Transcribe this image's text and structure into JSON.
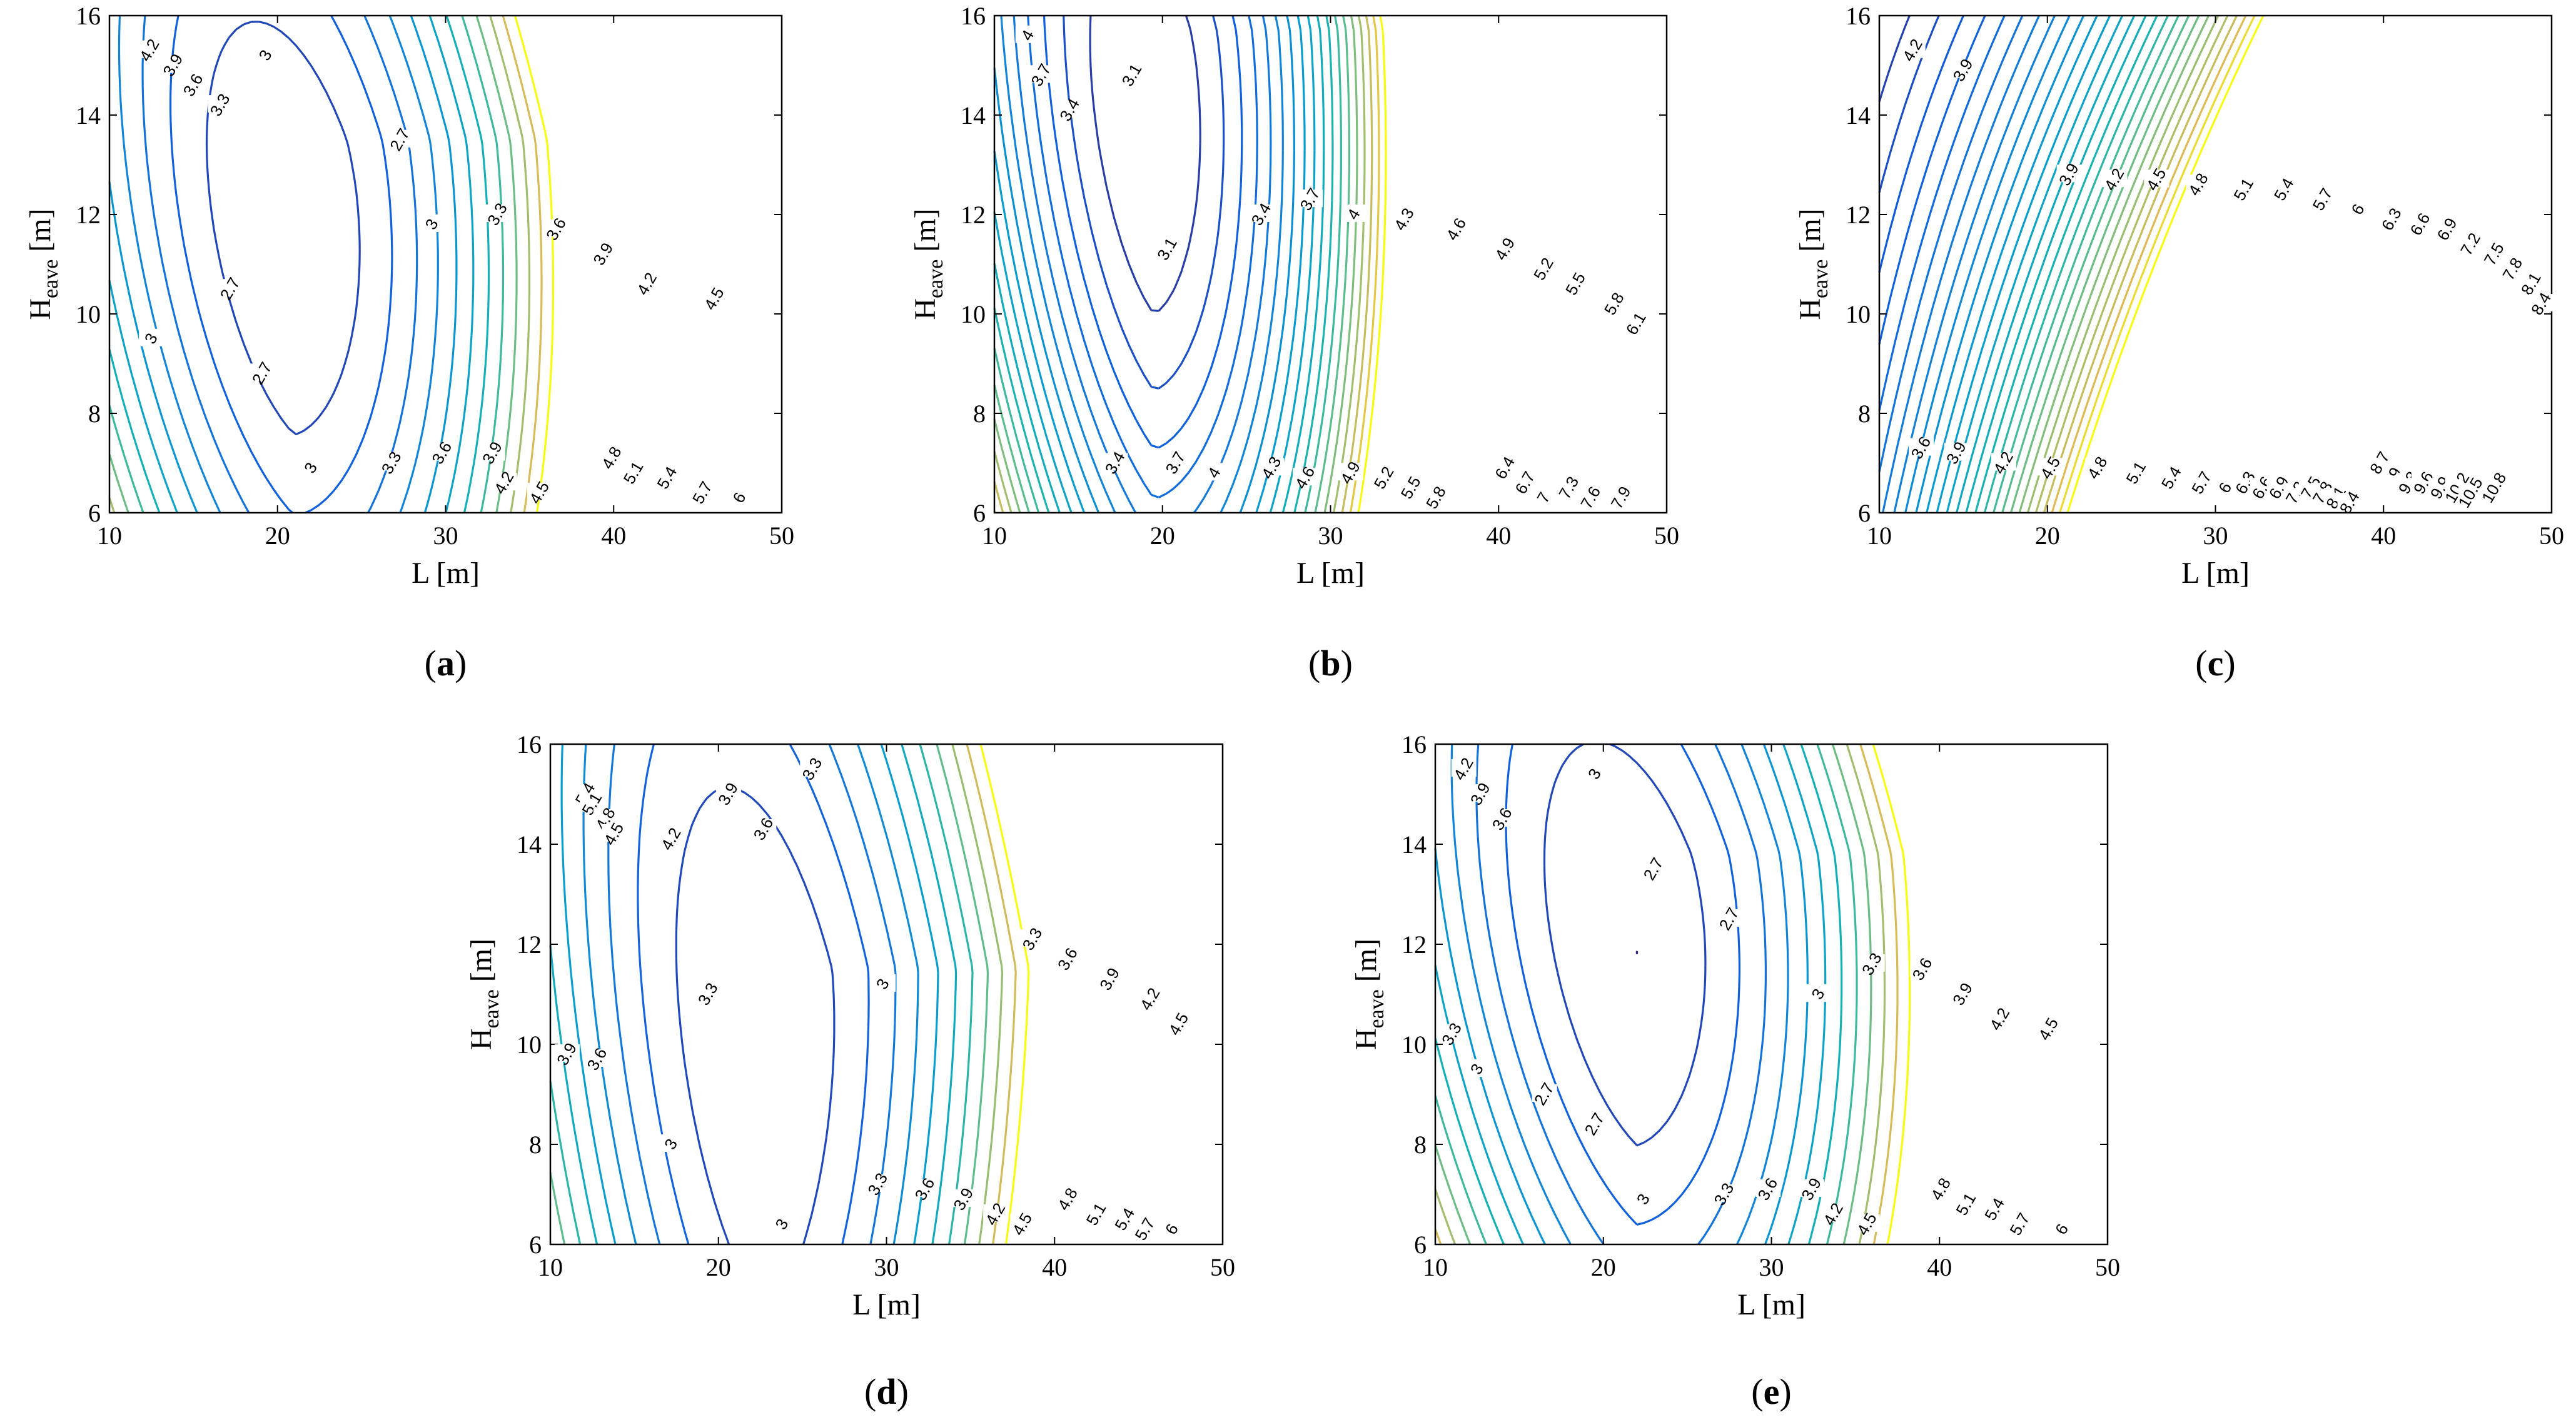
{
  "chart_data": [
    {
      "panel": "(a)",
      "type": "contour",
      "xlabel": "L [m]",
      "ylabel": "H",
      "ylabel_sub": "eave",
      "xlim": [
        10,
        50
      ],
      "ylim": [
        6,
        16
      ],
      "xticks": [
        10,
        20,
        30,
        40,
        50
      ],
      "yticks": [
        6,
        8,
        10,
        12,
        14,
        16
      ],
      "min_level": 2.7,
      "max_level": 6.3,
      "level_step": 0.3,
      "min_center": [
        21,
        11.5
      ],
      "slope": 0.1,
      "ellipse": [
        5.2,
        3.5,
        0.0
      ],
      "y_curvature": 0.06,
      "labels": [
        {
          "level": "4.2",
          "x": 12.4,
          "y": 15.3
        },
        {
          "level": "3.9",
          "x": 13.8,
          "y": 15.0
        },
        {
          "level": "3.6",
          "x": 15.0,
          "y": 14.6
        },
        {
          "level": "3.3",
          "x": 16.6,
          "y": 14.2
        },
        {
          "level": "3",
          "x": 19.3,
          "y": 15.2
        },
        {
          "level": "2.7",
          "x": 27.3,
          "y": 13.5
        },
        {
          "level": "2.7",
          "x": 17.2,
          "y": 10.5
        },
        {
          "level": "2.7",
          "x": 19.1,
          "y": 8.8
        },
        {
          "level": "3",
          "x": 12.5,
          "y": 9.5
        },
        {
          "level": "3",
          "x": 29.2,
          "y": 11.8
        },
        {
          "level": "3.3",
          "x": 33.1,
          "y": 12.0
        },
        {
          "level": "3.6",
          "x": 36.6,
          "y": 11.7
        },
        {
          "level": "3.9",
          "x": 39.4,
          "y": 11.2
        },
        {
          "level": "4.2",
          "x": 42.0,
          "y": 10.6
        },
        {
          "level": "4.5",
          "x": 46.0,
          "y": 10.3
        },
        {
          "level": "3",
          "x": 22.0,
          "y": 6.9
        },
        {
          "level": "3.3",
          "x": 26.8,
          "y": 7.0
        },
        {
          "level": "3.6",
          "x": 29.8,
          "y": 7.2
        },
        {
          "level": "3.9",
          "x": 32.8,
          "y": 7.2
        },
        {
          "level": "4.2",
          "x": 33.5,
          "y": 6.6
        },
        {
          "level": "4.5",
          "x": 35.6,
          "y": 6.4
        },
        {
          "level": "4.8",
          "x": 39.9,
          "y": 7.1
        },
        {
          "level": "5.1",
          "x": 41.2,
          "y": 6.8
        },
        {
          "level": "5.4",
          "x": 43.2,
          "y": 6.7
        },
        {
          "level": "5.7",
          "x": 45.3,
          "y": 6.4
        },
        {
          "level": "6",
          "x": 47.5,
          "y": 6.3
        }
      ]
    },
    {
      "panel": "(b)",
      "type": "contour",
      "xlabel": "L [m]",
      "ylabel": "H",
      "ylabel_sub": "eave",
      "xlim": [
        10,
        50
      ],
      "ylim": [
        6,
        16
      ],
      "xticks": [
        10,
        20,
        30,
        40,
        50
      ],
      "yticks": [
        6,
        8,
        10,
        12,
        14,
        16
      ],
      "min_level": 3.1,
      "max_level": 8.5,
      "level_step": 0.3,
      "min_center": [
        19.5,
        13.7
      ],
      "slope": 0.12,
      "ellipse": [
        3.8,
        3.3,
        0.0
      ],
      "y_curvature": 0.08,
      "labels": [
        {
          "level": "4",
          "x": 12.0,
          "y": 15.6
        },
        {
          "level": "3.7",
          "x": 12.8,
          "y": 14.8
        },
        {
          "level": "3.4",
          "x": 14.5,
          "y": 14.1
        },
        {
          "level": "3.1",
          "x": 18.2,
          "y": 14.8
        },
        {
          "level": "3.1",
          "x": 20.3,
          "y": 11.3
        },
        {
          "level": "3.4",
          "x": 25.9,
          "y": 12.0
        },
        {
          "level": "3.7",
          "x": 28.8,
          "y": 12.3
        },
        {
          "level": "4",
          "x": 31.4,
          "y": 12.0
        },
        {
          "level": "4.3",
          "x": 34.4,
          "y": 11.9
        },
        {
          "level": "4.6",
          "x": 37.5,
          "y": 11.7
        },
        {
          "level": "4.9",
          "x": 40.4,
          "y": 11.3
        },
        {
          "level": "5.2",
          "x": 42.7,
          "y": 10.9
        },
        {
          "level": "5.5",
          "x": 44.6,
          "y": 10.6
        },
        {
          "level": "5.8",
          "x": 46.9,
          "y": 10.2
        },
        {
          "level": "6.1",
          "x": 48.2,
          "y": 9.8
        },
        {
          "level": "3.4",
          "x": 17.2,
          "y": 7.0
        },
        {
          "level": "3.7",
          "x": 20.8,
          "y": 7.0
        },
        {
          "level": "4",
          "x": 23.1,
          "y": 6.8
        },
        {
          "level": "4.3",
          "x": 26.5,
          "y": 6.9
        },
        {
          "level": "4.6",
          "x": 28.5,
          "y": 6.7
        },
        {
          "level": "4.9",
          "x": 31.2,
          "y": 6.8
        },
        {
          "level": "5.2",
          "x": 33.2,
          "y": 6.7
        },
        {
          "level": "5.5",
          "x": 34.8,
          "y": 6.5
        },
        {
          "level": "5.8",
          "x": 36.3,
          "y": 6.3
        },
        {
          "level": "6.4",
          "x": 40.4,
          "y": 6.9
        },
        {
          "level": "6.7",
          "x": 41.6,
          "y": 6.6
        },
        {
          "level": "7",
          "x": 42.7,
          "y": 6.3
        },
        {
          "level": "7.3",
          "x": 44.2,
          "y": 6.5
        },
        {
          "level": "7.6",
          "x": 45.5,
          "y": 6.3
        },
        {
          "level": "7.9",
          "x": 47.3,
          "y": 6.3
        }
      ]
    },
    {
      "panel": "(c)",
      "type": "contour",
      "xlabel": "L [m]",
      "ylabel": "H",
      "ylabel_sub": "eave",
      "xlim": [
        10,
        50
      ],
      "ylim": [
        6,
        16
      ],
      "xticks": [
        10,
        20,
        30,
        40,
        50
      ],
      "yticks": [
        6,
        8,
        10,
        12,
        14,
        16
      ],
      "min_level": 3.6,
      "max_level": 12.0,
      "level_step": 0.3,
      "min_center": [
        5,
        14
      ],
      "slope": 0.16,
      "ellipse": [
        6,
        6,
        0.0
      ],
      "y_curvature": 0.12,
      "labels": [
        {
          "level": "4.2",
          "x": 12.0,
          "y": 15.3
        },
        {
          "level": "3.9",
          "x": 15.0,
          "y": 14.9
        },
        {
          "level": "3.9",
          "x": 21.3,
          "y": 12.8
        },
        {
          "level": "4.2",
          "x": 24.0,
          "y": 12.7
        },
        {
          "level": "4.5",
          "x": 26.5,
          "y": 12.7
        },
        {
          "level": "4.8",
          "x": 29.0,
          "y": 12.6
        },
        {
          "level": "5.1",
          "x": 31.7,
          "y": 12.5
        },
        {
          "level": "5.4",
          "x": 34.1,
          "y": 12.5
        },
        {
          "level": "5.7",
          "x": 36.4,
          "y": 12.3
        },
        {
          "level": "6",
          "x": 38.5,
          "y": 12.1
        },
        {
          "level": "6.3",
          "x": 40.5,
          "y": 11.9
        },
        {
          "level": "6.6",
          "x": 42.2,
          "y": 11.8
        },
        {
          "level": "6.9",
          "x": 43.8,
          "y": 11.7
        },
        {
          "level": "7.2",
          "x": 45.2,
          "y": 11.4
        },
        {
          "level": "7.5",
          "x": 46.6,
          "y": 11.2
        },
        {
          "level": "7.8",
          "x": 47.7,
          "y": 10.9
        },
        {
          "level": "8.1",
          "x": 48.8,
          "y": 10.6
        },
        {
          "level": "8.4",
          "x": 49.4,
          "y": 10.2
        },
        {
          "level": "3.6",
          "x": 12.5,
          "y": 7.3
        },
        {
          "level": "3.9",
          "x": 14.6,
          "y": 7.2
        },
        {
          "level": "4.2",
          "x": 17.4,
          "y": 7.0
        },
        {
          "level": "4.5",
          "x": 20.2,
          "y": 6.9
        },
        {
          "level": "4.8",
          "x": 23.0,
          "y": 6.9
        },
        {
          "level": "5.1",
          "x": 25.3,
          "y": 6.8
        },
        {
          "level": "5.4",
          "x": 27.4,
          "y": 6.7
        },
        {
          "level": "5.7",
          "x": 29.2,
          "y": 6.6
        },
        {
          "level": "6",
          "x": 30.6,
          "y": 6.5
        },
        {
          "level": "6.3",
          "x": 31.8,
          "y": 6.6
        },
        {
          "level": "6.6",
          "x": 32.8,
          "y": 6.5
        },
        {
          "level": "6.9",
          "x": 33.8,
          "y": 6.5
        },
        {
          "level": "7.2",
          "x": 34.8,
          "y": 6.4
        },
        {
          "level": "7.5",
          "x": 35.7,
          "y": 6.5
        },
        {
          "level": "7.8",
          "x": 36.4,
          "y": 6.4
        },
        {
          "level": "8.1",
          "x": 37.2,
          "y": 6.3
        },
        {
          "level": "8.4",
          "x": 38.0,
          "y": 6.2
        },
        {
          "level": "8.7",
          "x": 39.8,
          "y": 7.0
        },
        {
          "level": "9",
          "x": 40.7,
          "y": 6.8
        },
        {
          "level": "9.3",
          "x": 41.5,
          "y": 6.6
        },
        {
          "level": "9.6",
          "x": 42.4,
          "y": 6.6
        },
        {
          "level": "9.9",
          "x": 43.4,
          "y": 6.5
        },
        {
          "level": "10.2",
          "x": 44.4,
          "y": 6.5
        },
        {
          "level": "10.5",
          "x": 45.2,
          "y": 6.4
        },
        {
          "level": "10.8",
          "x": 46.6,
          "y": 6.5
        }
      ]
    },
    {
      "panel": "(d)",
      "type": "contour",
      "xlabel": "L [m]",
      "ylabel": "H",
      "ylabel_sub": "eave",
      "xlim": [
        10,
        50
      ],
      "ylim": [
        6,
        16
      ],
      "xticks": [
        10,
        20,
        30,
        40,
        50
      ],
      "yticks": [
        6,
        8,
        10,
        12,
        14,
        16
      ],
      "min_level": 3.0,
      "max_level": 6.3,
      "level_step": 0.3,
      "min_center": [
        23,
        9.5
      ],
      "slope": 0.08,
      "ellipse": [
        5.5,
        4.5,
        0.0
      ],
      "y_curvature": 0.1,
      "labels": [
        {
          "level": "5.4",
          "x": 12.1,
          "y": 15.0
        },
        {
          "level": "5.1",
          "x": 12.5,
          "y": 14.8
        },
        {
          "level": "4.8",
          "x": 13.3,
          "y": 14.5
        },
        {
          "level": "4.5",
          "x": 13.8,
          "y": 14.2
        },
        {
          "level": "4.2",
          "x": 17.2,
          "y": 14.1
        },
        {
          "level": "3.9",
          "x": 20.6,
          "y": 15.0
        },
        {
          "level": "3.6",
          "x": 22.7,
          "y": 14.3
        },
        {
          "level": "3.3",
          "x": 25.6,
          "y": 15.5
        },
        {
          "level": "3",
          "x": 29.8,
          "y": 11.2
        },
        {
          "level": "3.3",
          "x": 19.4,
          "y": 11.0
        },
        {
          "level": "3.9",
          "x": 11.0,
          "y": 9.8
        },
        {
          "level": "3.6",
          "x": 12.8,
          "y": 9.7
        },
        {
          "level": "3",
          "x": 17.2,
          "y": 8.0
        },
        {
          "level": "3.3",
          "x": 38.7,
          "y": 12.1
        },
        {
          "level": "3.6",
          "x": 40.8,
          "y": 11.7
        },
        {
          "level": "3.9",
          "x": 43.3,
          "y": 11.3
        },
        {
          "level": "4.2",
          "x": 45.7,
          "y": 10.9
        },
        {
          "level": "4.5",
          "x": 47.4,
          "y": 10.4
        },
        {
          "level": "3",
          "x": 23.8,
          "y": 6.4
        },
        {
          "level": "3.3",
          "x": 29.5,
          "y": 7.2
        },
        {
          "level": "3.6",
          "x": 32.3,
          "y": 7.1
        },
        {
          "level": "3.9",
          "x": 34.6,
          "y": 6.9
        },
        {
          "level": "4.2",
          "x": 36.5,
          "y": 6.6
        },
        {
          "level": "4.5",
          "x": 38.1,
          "y": 6.4
        },
        {
          "level": "4.8",
          "x": 40.8,
          "y": 6.9
        },
        {
          "level": "5.1",
          "x": 42.5,
          "y": 6.6
        },
        {
          "level": "5.4",
          "x": 44.2,
          "y": 6.5
        },
        {
          "level": "5.7",
          "x": 45.4,
          "y": 6.3
        },
        {
          "level": "6",
          "x": 47.0,
          "y": 6.3
        }
      ]
    },
    {
      "panel": "(e)",
      "type": "contour",
      "xlabel": "L [m]",
      "ylabel": "H",
      "ylabel_sub": "eave",
      "xlim": [
        10,
        50
      ],
      "ylim": [
        6,
        16
      ],
      "xticks": [
        10,
        20,
        30,
        40,
        50
      ],
      "yticks": [
        6,
        8,
        10,
        12,
        14,
        16
      ],
      "min_level": 2.7,
      "max_level": 6.3,
      "level_step": 0.3,
      "min_center": [
        22,
        11.8
      ],
      "slope": 0.1,
      "ellipse": [
        5.5,
        3.4,
        0.0
      ],
      "y_curvature": 0.06,
      "labels": [
        {
          "level": "4.2",
          "x": 11.7,
          "y": 15.5
        },
        {
          "level": "3.9",
          "x": 12.7,
          "y": 15.0
        },
        {
          "level": "3.6",
          "x": 14.0,
          "y": 14.5
        },
        {
          "level": "3",
          "x": 19.5,
          "y": 15.4
        },
        {
          "level": "2.7",
          "x": 23.0,
          "y": 13.5
        },
        {
          "level": "2.7",
          "x": 27.5,
          "y": 12.5
        },
        {
          "level": "3.3",
          "x": 11.0,
          "y": 10.2
        },
        {
          "level": "3",
          "x": 12.5,
          "y": 9.5
        },
        {
          "level": "2.7",
          "x": 16.5,
          "y": 9.0
        },
        {
          "level": "2.7",
          "x": 19.5,
          "y": 8.4
        },
        {
          "level": "3",
          "x": 32.8,
          "y": 11.0
        },
        {
          "level": "3.3",
          "x": 36.0,
          "y": 11.6
        },
        {
          "level": "3.6",
          "x": 39.0,
          "y": 11.5
        },
        {
          "level": "3.9",
          "x": 41.4,
          "y": 11.0
        },
        {
          "level": "4.2",
          "x": 43.6,
          "y": 10.5
        },
        {
          "level": "4.5",
          "x": 46.5,
          "y": 10.3
        },
        {
          "level": "3",
          "x": 22.4,
          "y": 6.9
        },
        {
          "level": "3.3",
          "x": 27.2,
          "y": 7.0
        },
        {
          "level": "3.6",
          "x": 29.8,
          "y": 7.1
        },
        {
          "level": "3.9",
          "x": 32.4,
          "y": 7.1
        },
        {
          "level": "4.2",
          "x": 33.7,
          "y": 6.6
        },
        {
          "level": "4.5",
          "x": 35.7,
          "y": 6.4
        },
        {
          "level": "4.8",
          "x": 40.1,
          "y": 7.1
        },
        {
          "level": "5.1",
          "x": 41.6,
          "y": 6.8
        },
        {
          "level": "5.4",
          "x": 43.3,
          "y": 6.7
        },
        {
          "level": "5.7",
          "x": 44.8,
          "y": 6.4
        },
        {
          "level": "6",
          "x": 47.3,
          "y": 6.3
        }
      ]
    }
  ]
}
